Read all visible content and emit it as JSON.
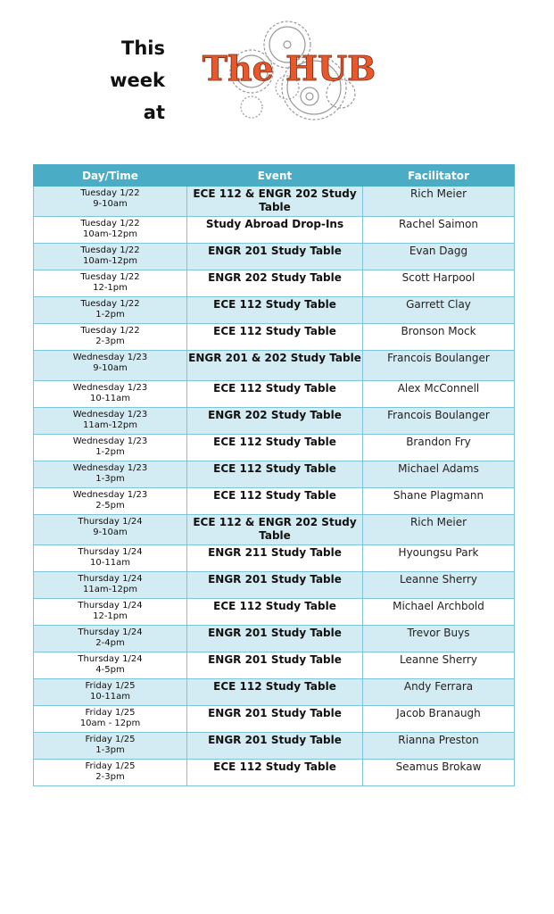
{
  "intro": {
    "line1": "This",
    "line2": "week",
    "line3": "at"
  },
  "logo": {
    "text": "The HUB",
    "color": "#e8582a"
  },
  "colors": {
    "header": "#4bacc6",
    "alt_row": "#d3ebf3",
    "border": "#7fc4d8"
  },
  "table": {
    "headers": [
      "Day/Time",
      "Event",
      "Facilitator"
    ],
    "rows": [
      {
        "day": "Tuesday 1/22",
        "time": "9-10am",
        "event": "ECE 112 & ENGR 202 Study Table",
        "facilitator": "Rich Meier"
      },
      {
        "day": "Tuesday 1/22",
        "time": "10am-12pm",
        "event": "Study Abroad Drop-Ins",
        "facilitator": "Rachel Saimon"
      },
      {
        "day": "Tuesday 1/22",
        "time": "10am-12pm",
        "event": "ENGR 201 Study Table",
        "facilitator": "Evan Dagg"
      },
      {
        "day": "Tuesday 1/22",
        "time": "12-1pm",
        "event": "ENGR 202 Study Table",
        "facilitator": "Scott Harpool"
      },
      {
        "day": "Tuesday 1/22",
        "time": "1-2pm",
        "event": "ECE 112 Study Table",
        "facilitator": "Garrett Clay"
      },
      {
        "day": "Tuesday 1/22",
        "time": "2-3pm",
        "event": "ECE 112 Study Table",
        "facilitator": "Bronson Mock"
      },
      {
        "day": "Wednesday 1/23",
        "time": "9-10am",
        "event": "ENGR 201 & 202 Study Table",
        "facilitator": "Francois Boulanger"
      },
      {
        "day": "Wednesday 1/23",
        "time": "10-11am",
        "event": "ECE 112 Study Table",
        "facilitator": "Alex McConnell"
      },
      {
        "day": "Wednesday 1/23",
        "time": "11am-12pm",
        "event": "ENGR 202 Study Table",
        "facilitator": "Francois Boulanger"
      },
      {
        "day": "Wednesday 1/23",
        "time": "1-2pm",
        "event": "ECE 112 Study Table",
        "facilitator": "Brandon Fry"
      },
      {
        "day": "Wednesday 1/23",
        "time": "1-3pm",
        "event": "ECE 112 Study Table",
        "facilitator": "Michael Adams"
      },
      {
        "day": "Wednesday 1/23",
        "time": "2-5pm",
        "event": "ECE 112 Study Table",
        "facilitator": "Shane Plagmann"
      },
      {
        "day": "Thursday 1/24",
        "time": "9-10am",
        "event": "ECE 112 & ENGR 202 Study Table",
        "facilitator": "Rich Meier"
      },
      {
        "day": "Thursday 1/24",
        "time": "10-11am",
        "event": "ENGR 211 Study Table",
        "facilitator": "Hyoungsu Park"
      },
      {
        "day": "Thursday 1/24",
        "time": "11am-12pm",
        "event": "ENGR 201 Study Table",
        "facilitator": "Leanne Sherry"
      },
      {
        "day": "Thursday 1/24",
        "time": "12-1pm",
        "event": "ECE 112 Study Table",
        "facilitator": "Michael Archbold"
      },
      {
        "day": "Thursday 1/24",
        "time": "2-4pm",
        "event": "ENGR 201 Study Table",
        "facilitator": "Trevor Buys"
      },
      {
        "day": "Thursday 1/24",
        "time": "4-5pm",
        "event": "ENGR 201 Study Table",
        "facilitator": "Leanne Sherry"
      },
      {
        "day": "Friday 1/25",
        "time": "10-11am",
        "event": "ECE 112 Study Table",
        "facilitator": "Andy Ferrara"
      },
      {
        "day": "Friday 1/25",
        "time": "10am - 12pm",
        "event": "ENGR 201 Study Table",
        "facilitator": "Jacob Branaugh"
      },
      {
        "day": "Friday 1/25",
        "time": "1-3pm",
        "event": "ENGR 201 Study Table",
        "facilitator": "Rianna Preston"
      },
      {
        "day": "Friday 1/25",
        "time": "2-3pm",
        "event": "ECE 112 Study Table",
        "facilitator": "Seamus Brokaw"
      }
    ]
  }
}
